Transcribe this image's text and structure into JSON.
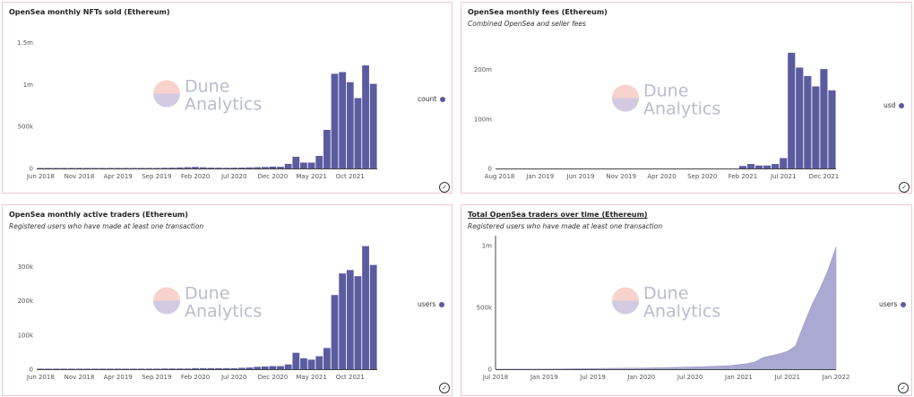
{
  "watermark": {
    "line1": "Dune",
    "line2": "Analytics"
  },
  "chart_data": [
    {
      "type": "bar",
      "title": "OpenSea monthly NFTs sold (Ethereum)",
      "subtitle": "",
      "legend": {
        "label": "count",
        "placement": "right"
      },
      "color": "#5b5b9f",
      "xtick_labels": [
        {
          "index": 0,
          "label": "Jun 2018"
        },
        {
          "index": 5,
          "label": "Nov 2018"
        },
        {
          "index": 10,
          "label": "Apr 2019"
        },
        {
          "index": 15,
          "label": "Sep 2019"
        },
        {
          "index": 20,
          "label": "Feb 2020"
        },
        {
          "index": 25,
          "label": "Jul 2020"
        },
        {
          "index": 30,
          "label": "Dec 2020"
        },
        {
          "index": 35,
          "label": "May 2021"
        },
        {
          "index": 40,
          "label": "Oct 2021"
        }
      ],
      "yticks": [
        {
          "value": 0,
          "label": "0"
        },
        {
          "value": 500000,
          "label": "500k"
        },
        {
          "value": 1000000,
          "label": "1m"
        },
        {
          "value": 1500000,
          "label": "1.5m"
        }
      ],
      "ylim": [
        0,
        1700000
      ],
      "values": [
        1000,
        1000,
        1000,
        1000,
        1000,
        1000,
        1000,
        1000,
        1000,
        1000,
        1000,
        1000,
        2000,
        2000,
        3000,
        5000,
        8000,
        9000,
        12000,
        15000,
        18000,
        14000,
        10000,
        9000,
        8000,
        9000,
        10000,
        13000,
        15000,
        18000,
        22000,
        20000,
        55000,
        140000,
        70000,
        70000,
        150000,
        460000,
        1130000,
        1150000,
        1030000,
        840000,
        1230000,
        1010000
      ],
      "grid": false
    },
    {
      "type": "bar",
      "title": "OpenSea monthly fees (Ethereum)",
      "subtitle": "Combined OpenSea and seller fees",
      "legend": {
        "label": "usd",
        "placement": "right"
      },
      "color": "#5b5b9f",
      "xtick_labels": [
        {
          "index": 0,
          "label": "Aug 2018"
        },
        {
          "index": 5,
          "label": "Jan 2019"
        },
        {
          "index": 10,
          "label": "Jun 2019"
        },
        {
          "index": 15,
          "label": "Nov 2019"
        },
        {
          "index": 20,
          "label": "Apr 2020"
        },
        {
          "index": 25,
          "label": "Sep 2020"
        },
        {
          "index": 30,
          "label": "Feb 2021"
        },
        {
          "index": 35,
          "label": "Jul 2021"
        },
        {
          "index": 40,
          "label": "Dec 2021"
        }
      ],
      "yticks": [
        {
          "value": 0,
          "label": "0"
        },
        {
          "value": 100000000,
          "label": "100m"
        },
        {
          "value": 200000000,
          "label": "200m"
        }
      ],
      "ylim": [
        0,
        270000000
      ],
      "values": [
        0,
        0,
        0,
        0,
        0,
        0,
        0,
        0,
        0,
        0,
        0,
        0,
        0,
        0,
        0,
        0,
        0,
        0,
        0,
        0,
        0,
        0,
        0,
        0,
        0,
        0,
        0,
        0,
        0,
        0,
        5000000,
        9000000,
        6000000,
        6000000,
        9000000,
        21000000,
        234000000,
        204000000,
        187000000,
        166000000,
        201000000,
        158000000
      ],
      "grid": false
    },
    {
      "type": "bar",
      "title": "OpenSea monthly active traders (Ethereum)",
      "subtitle": "Registered users who have made at least one transaction",
      "legend": {
        "label": "users",
        "placement": "right"
      },
      "color": "#5b5b9f",
      "xtick_labels": [
        {
          "index": 0,
          "label": "Jun 2018"
        },
        {
          "index": 5,
          "label": "Nov 2018"
        },
        {
          "index": 10,
          "label": "Apr 2019"
        },
        {
          "index": 15,
          "label": "Sep 2019"
        },
        {
          "index": 20,
          "label": "Feb 2020"
        },
        {
          "index": 25,
          "label": "Jul 2020"
        },
        {
          "index": 30,
          "label": "Dec 2020"
        },
        {
          "index": 35,
          "label": "May 2021"
        },
        {
          "index": 40,
          "label": "Oct 2021"
        }
      ],
      "yticks": [
        {
          "value": 0,
          "label": "0"
        },
        {
          "value": 100000,
          "label": "100k"
        },
        {
          "value": 200000,
          "label": "200k"
        },
        {
          "value": 300000,
          "label": "300k"
        }
      ],
      "ylim": [
        0,
        380000
      ],
      "values": [
        500,
        500,
        500,
        500,
        500,
        500,
        500,
        500,
        500,
        500,
        500,
        500,
        1000,
        1000,
        1000,
        1000,
        2000,
        2000,
        2000,
        2000,
        3000,
        3000,
        3000,
        3000,
        3000,
        3000,
        4000,
        5000,
        7000,
        8000,
        9000,
        9000,
        14000,
        48000,
        32000,
        28000,
        38000,
        62000,
        217000,
        280000,
        290000,
        272000,
        360000,
        305000
      ],
      "grid": false
    },
    {
      "type": "area",
      "title": "Total OpenSea traders over time (Ethereum)",
      "subtitle": "Registered users who have made at least one transaction",
      "legend": {
        "label": "users",
        "placement": "right"
      },
      "color": "#a9a9d2",
      "xtick_labels": [
        {
          "value": "2018-07",
          "label": "Jul 2018"
        },
        {
          "value": "2019-01",
          "label": "Jan 2019"
        },
        {
          "value": "2019-07",
          "label": "Jul 2019"
        },
        {
          "value": "2020-01",
          "label": "Jan 2020"
        },
        {
          "value": "2020-07",
          "label": "Jul 2020"
        },
        {
          "value": "2021-01",
          "label": "Jan 2021"
        },
        {
          "value": "2021-07",
          "label": "Jul 2021"
        },
        {
          "value": "2022-01",
          "label": "Jan 2022"
        }
      ],
      "yticks": [
        {
          "value": 0,
          "label": "0"
        },
        {
          "value": 500000,
          "label": "500k"
        },
        {
          "value": 1000000,
          "label": "1m"
        }
      ],
      "ylim": [
        0,
        1050000
      ],
      "x": [
        "2018-07",
        "2018-10",
        "2019-01",
        "2019-04",
        "2019-07",
        "2019-10",
        "2020-01",
        "2020-04",
        "2020-07",
        "2020-10",
        "2020-12",
        "2021-01",
        "2021-02",
        "2021-03",
        "2021-04",
        "2021-05",
        "2021-06",
        "2021-07",
        "2021-08",
        "2021-09",
        "2021-10",
        "2021-11",
        "2021-12",
        "2022-01"
      ],
      "values": [
        0,
        1000,
        2000,
        4000,
        6000,
        8000,
        10000,
        14000,
        18000,
        24000,
        30000,
        38000,
        45000,
        60000,
        95000,
        110000,
        125000,
        145000,
        190000,
        360000,
        520000,
        650000,
        800000,
        990000
      ],
      "grid": false
    }
  ]
}
